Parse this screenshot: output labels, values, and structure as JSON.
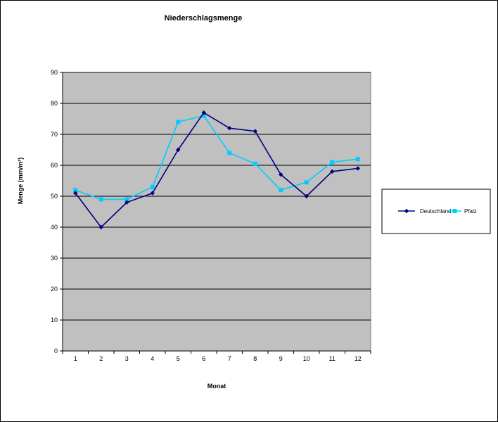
{
  "chart_data": {
    "type": "line",
    "title": "Niederschlagsmenge",
    "xlabel": "Monat",
    "ylabel": "Menge (mm/m²)",
    "categories": [
      "1",
      "2",
      "3",
      "4",
      "5",
      "6",
      "7",
      "8",
      "9",
      "10",
      "11",
      "12"
    ],
    "ylim": [
      0,
      90
    ],
    "yticks": [
      "0",
      "10",
      "20",
      "30",
      "40",
      "50",
      "60",
      "70",
      "80",
      "90"
    ],
    "grid": true,
    "legend_position": "right",
    "series": [
      {
        "name": "Deutschland",
        "color": "#000080",
        "marker": "diamond",
        "values": [
          51,
          40,
          48,
          51,
          65,
          77,
          72,
          71,
          57,
          50,
          58,
          59
        ]
      },
      {
        "name": "Pfalz",
        "color": "#00ccff",
        "marker": "square",
        "values": [
          52,
          49,
          49,
          53,
          74,
          76,
          64,
          60.5,
          52,
          54.5,
          61,
          62
        ]
      }
    ],
    "colors": {
      "plot_background": "#c0c0c0",
      "gridline": "#000000"
    }
  }
}
